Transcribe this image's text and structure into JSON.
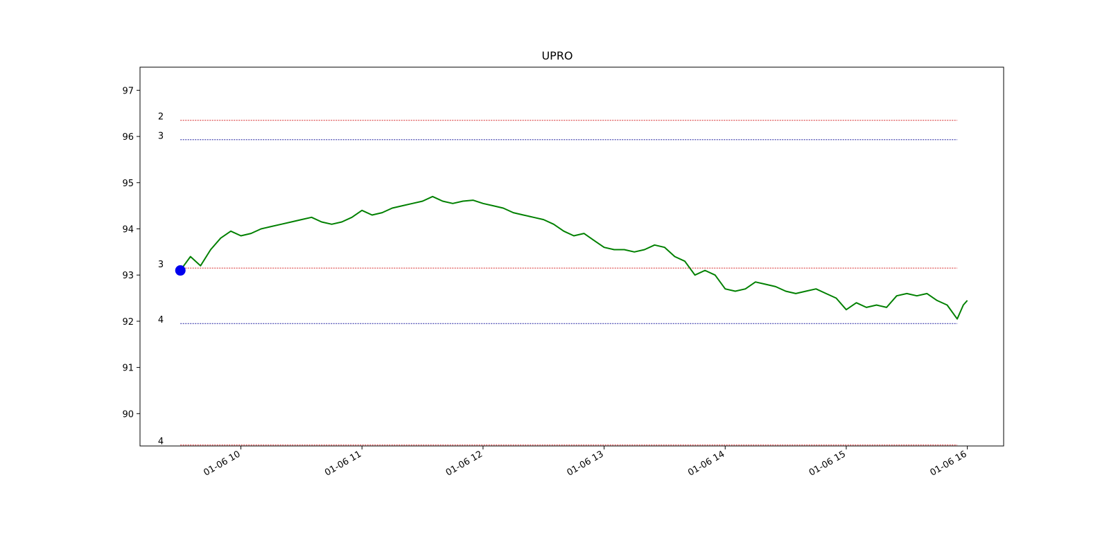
{
  "chart_data": {
    "type": "line",
    "title": "UPRO",
    "xlabel": "",
    "ylabel": "",
    "x_ticks": [
      "01-06 10",
      "01-06 11",
      "01-06 12",
      "01-06 13",
      "01-06 14",
      "01-06 15",
      "01-06 16"
    ],
    "x_range": [
      "01-06 09:10",
      "01-06 16:18"
    ],
    "ylim": [
      89.3,
      97.5
    ],
    "y_ticks": [
      90,
      91,
      92,
      93,
      94,
      95,
      96,
      97
    ],
    "grid": false,
    "legend": "none",
    "series": [
      {
        "color": "#008000",
        "points": [
          [
            "01-06 09:30",
            93.1
          ],
          [
            "01-06 09:35",
            93.4
          ],
          [
            "01-06 09:40",
            93.2
          ],
          [
            "01-06 09:45",
            93.55
          ],
          [
            "01-06 09:50",
            93.8
          ],
          [
            "01-06 09:55",
            93.95
          ],
          [
            "01-06 10:00",
            93.85
          ],
          [
            "01-06 10:05",
            93.9
          ],
          [
            "01-06 10:10",
            94.0
          ],
          [
            "01-06 10:15",
            94.05
          ],
          [
            "01-06 10:20",
            94.1
          ],
          [
            "01-06 10:25",
            94.15
          ],
          [
            "01-06 10:30",
            94.2
          ],
          [
            "01-06 10:35",
            94.25
          ],
          [
            "01-06 10:40",
            94.15
          ],
          [
            "01-06 10:45",
            94.1
          ],
          [
            "01-06 10:50",
            94.15
          ],
          [
            "01-06 10:55",
            94.25
          ],
          [
            "01-06 11:00",
            94.4
          ],
          [
            "01-06 11:05",
            94.3
          ],
          [
            "01-06 11:10",
            94.35
          ],
          [
            "01-06 11:15",
            94.45
          ],
          [
            "01-06 11:20",
            94.5
          ],
          [
            "01-06 11:25",
            94.55
          ],
          [
            "01-06 11:30",
            94.6
          ],
          [
            "01-06 11:35",
            94.7
          ],
          [
            "01-06 11:40",
            94.6
          ],
          [
            "01-06 11:45",
            94.55
          ],
          [
            "01-06 11:50",
            94.6
          ],
          [
            "01-06 11:55",
            94.62
          ],
          [
            "01-06 12:00",
            94.55
          ],
          [
            "01-06 12:05",
            94.5
          ],
          [
            "01-06 12:10",
            94.45
          ],
          [
            "01-06 12:15",
            94.35
          ],
          [
            "01-06 12:20",
            94.3
          ],
          [
            "01-06 12:25",
            94.25
          ],
          [
            "01-06 12:30",
            94.2
          ],
          [
            "01-06 12:35",
            94.1
          ],
          [
            "01-06 12:40",
            93.95
          ],
          [
            "01-06 12:45",
            93.85
          ],
          [
            "01-06 12:50",
            93.9
          ],
          [
            "01-06 12:55",
            93.75
          ],
          [
            "01-06 13:00",
            93.6
          ],
          [
            "01-06 13:05",
            93.55
          ],
          [
            "01-06 13:10",
            93.55
          ],
          [
            "01-06 13:15",
            93.5
          ],
          [
            "01-06 13:20",
            93.55
          ],
          [
            "01-06 13:25",
            93.65
          ],
          [
            "01-06 13:30",
            93.6
          ],
          [
            "01-06 13:35",
            93.4
          ],
          [
            "01-06 13:40",
            93.3
          ],
          [
            "01-06 13:45",
            93.0
          ],
          [
            "01-06 13:50",
            93.1
          ],
          [
            "01-06 13:55",
            93.0
          ],
          [
            "01-06 14:00",
            92.7
          ],
          [
            "01-06 14:05",
            92.65
          ],
          [
            "01-06 14:10",
            92.7
          ],
          [
            "01-06 14:15",
            92.85
          ],
          [
            "01-06 14:20",
            92.8
          ],
          [
            "01-06 14:25",
            92.75
          ],
          [
            "01-06 14:30",
            92.65
          ],
          [
            "01-06 14:35",
            92.6
          ],
          [
            "01-06 14:40",
            92.65
          ],
          [
            "01-06 14:45",
            92.7
          ],
          [
            "01-06 14:50",
            92.6
          ],
          [
            "01-06 14:55",
            92.5
          ],
          [
            "01-06 15:00",
            92.25
          ],
          [
            "01-06 15:05",
            92.4
          ],
          [
            "01-06 15:10",
            92.3
          ],
          [
            "01-06 15:15",
            92.35
          ],
          [
            "01-06 15:20",
            92.3
          ],
          [
            "01-06 15:25",
            92.55
          ],
          [
            "01-06 15:30",
            92.6
          ],
          [
            "01-06 15:35",
            92.55
          ],
          [
            "01-06 15:40",
            92.6
          ],
          [
            "01-06 15:45",
            92.45
          ],
          [
            "01-06 15:50",
            92.35
          ],
          [
            "01-06 15:55",
            92.05
          ],
          [
            "01-06 15:58",
            92.35
          ],
          [
            "01-06 16:00",
            92.45
          ]
        ]
      }
    ],
    "start_marker": {
      "time": "01-06 09:30",
      "value": 93.1,
      "color": "#0000ee"
    },
    "levels": [
      {
        "label": "2",
        "value": 96.35,
        "color": "#d62728"
      },
      {
        "label": "3",
        "value": 95.93,
        "color": "#1f1f9f"
      },
      {
        "label": "3",
        "value": 93.15,
        "color": "#d62728"
      },
      {
        "label": "4",
        "value": 91.95,
        "color": "#1f1f9f"
      },
      {
        "label": "4",
        "value": 89.32,
        "color": "#d62728"
      }
    ],
    "levels_x_range": [
      "01-06 09:30",
      "01-06 15:55"
    ]
  }
}
